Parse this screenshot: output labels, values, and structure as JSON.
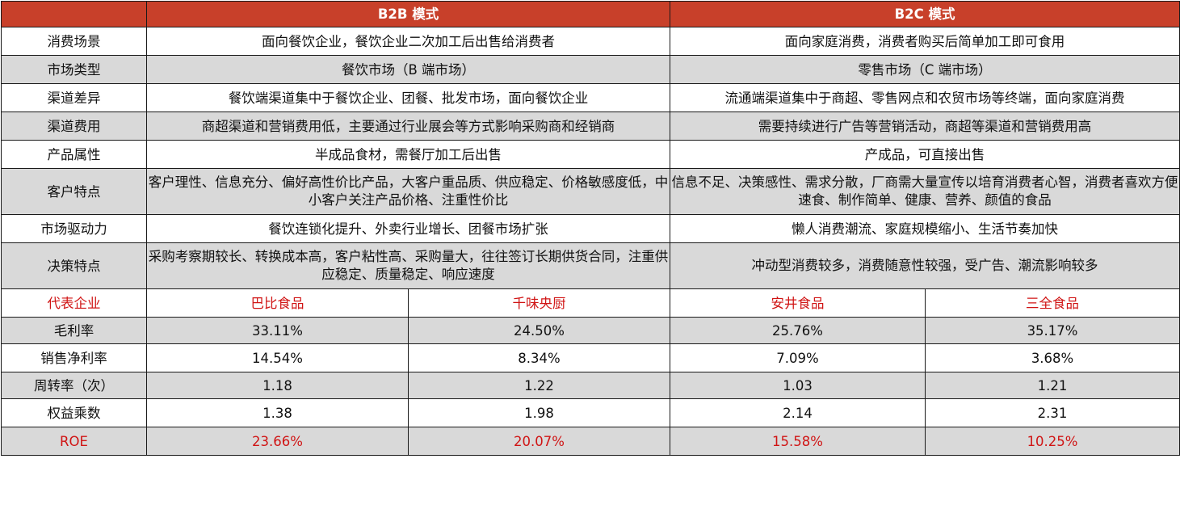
{
  "header": {
    "corner": "",
    "b2b": "B2B 模式",
    "b2c": "B2C 模式"
  },
  "text_rows": [
    {
      "label": "消费场景",
      "b2b": "面向餐饮企业，餐饮企业二次加工后出售给消费者",
      "b2c": "面向家庭消费，消费者购买后简单加工即可食用"
    },
    {
      "label": "市场类型",
      "b2b": "餐饮市场（B 端市场）",
      "b2c": "零售市场（C 端市场）"
    },
    {
      "label": "渠道差异",
      "b2b": "餐饮端渠道集中于餐饮企业、团餐、批发市场，面向餐饮企业",
      "b2c": "流通端渠道集中于商超、零售网点和农贸市场等终端，面向家庭消费"
    },
    {
      "label": "渠道费用",
      "b2b": "商超渠道和营销费用低，主要通过行业展会等方式影响采购商和经销商",
      "b2c": "需要持续进行广告等营销活动，商超等渠道和营销费用高"
    },
    {
      "label": "产品属性",
      "b2b": "半成品食材，需餐厅加工后出售",
      "b2c": "产成品，可直接出售"
    },
    {
      "label": "客户特点",
      "b2b": "客户理性、信息充分、偏好高性价比产品，大客户重品质、供应稳定、价格敏感度低，中小客户关注产品价格、注重性价比",
      "b2c": "信息不足、决策感性、需求分散，厂商需大量宣传以培育消费者心智，消费者喜欢方便速食、制作简单、健康、营养、颜值的食品"
    },
    {
      "label": "市场驱动力",
      "b2b": "餐饮连锁化提升、外卖行业增长、团餐市场扩张",
      "b2c": "懒人消费潮流、家庭规模缩小、生活节奏加快"
    },
    {
      "label": "决策特点",
      "b2b": "采购考察期较长、转换成本高，客户粘性高、采购量大，往往签订长期供货合同，注重供应稳定、质量稳定、响应速度",
      "b2c": "冲动型消费较多，消费随意性较强，受广告、潮流影响较多"
    }
  ],
  "company_row": {
    "label": "代表企业",
    "c1": "巴比食品",
    "c2": "千味央厨",
    "c3": "安井食品",
    "c4": "三全食品"
  },
  "metric_rows": [
    {
      "label": "毛利率",
      "c1": "33.11%",
      "c2": "24.50%",
      "c3": "25.76%",
      "c4": "35.17%"
    },
    {
      "label": "销售净利率",
      "c1": "14.54%",
      "c2": "8.34%",
      "c3": "7.09%",
      "c4": "3.68%"
    },
    {
      "label": "周转率（次）",
      "c1": "1.18",
      "c2": "1.22",
      "c3": "1.03",
      "c4": "1.21"
    },
    {
      "label": "权益乘数",
      "c1": "1.38",
      "c2": "1.98",
      "c3": "2.14",
      "c4": "2.31"
    }
  ],
  "roe_row": {
    "label": "ROE",
    "c1": "23.66%",
    "c2": "20.07%",
    "c3": "15.58%",
    "c4": "10.25%"
  },
  "colors": {
    "header_bg": "#c8402a",
    "header_text": "#ffffff",
    "stripe_bg": "#d9d9d9",
    "highlight_text": "#d01414"
  }
}
